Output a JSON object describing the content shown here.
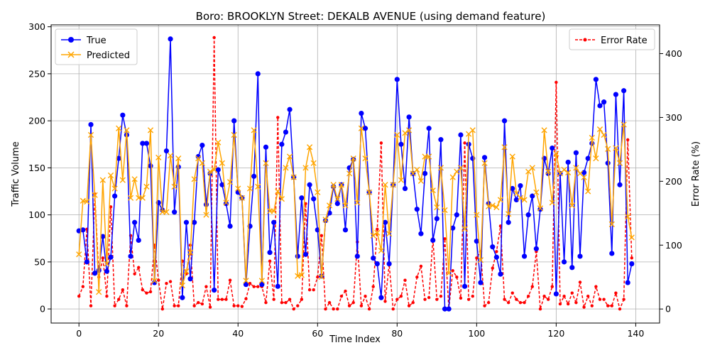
{
  "chart_data": {
    "type": "line",
    "title": "Boro: BROOKLYN Street: DEKALB AVENUE (using demand feature)",
    "xlabel": "Time Index",
    "ylabel": "Traffic Volume",
    "y2label": "Error Rate (%)",
    "xlim": [
      -7,
      146
    ],
    "ylim": [
      -15,
      302
    ],
    "y2lim": [
      -22,
      445
    ],
    "x_ticks": [
      0,
      20,
      40,
      60,
      80,
      100,
      120,
      140
    ],
    "y_ticks": [
      0,
      50,
      100,
      150,
      200,
      250,
      300
    ],
    "y2_ticks": [
      0,
      100,
      200,
      300,
      400
    ],
    "grid": true,
    "legend_left_position": "upper-left",
    "legend_right_position": "upper-right",
    "series": [
      {
        "name": "True",
        "axis": "left",
        "color": "#0000ff",
        "marker": "circle",
        "values": [
          83,
          84,
          50,
          196,
          38,
          41,
          77,
          40,
          55,
          120,
          160,
          206,
          185,
          56,
          92,
          73,
          176,
          176,
          152,
          28,
          113,
          105,
          168,
          287,
          103,
          151,
          12,
          92,
          32,
          92,
          162,
          174,
          111,
          144,
          20,
          148,
          132,
          112,
          88,
          200,
          124,
          118,
          26,
          88,
          141,
          250,
          26,
          172,
          60,
          92,
          24,
          175,
          188,
          212,
          140,
          56,
          118,
          58,
          132,
          117,
          84,
          35,
          94,
          102,
          130,
          112,
          132,
          84,
          150,
          159,
          56,
          208,
          192,
          124,
          54,
          48,
          12,
          92,
          48,
          132,
          244,
          175,
          128,
          204,
          144,
          106,
          80,
          144,
          192,
          73,
          96,
          180,
          0,
          0,
          86,
          100,
          185,
          24,
          175,
          160,
          72,
          28,
          161,
          112,
          66,
          55,
          37,
          200,
          92,
          128,
          116,
          131,
          56,
          100,
          120,
          64,
          106,
          160,
          144,
          171,
          16,
          144,
          50,
          156,
          44,
          166,
          56,
          145,
          160,
          176,
          244,
          216,
          220,
          155,
          59,
          228,
          132,
          232,
          28,
          48
        ]
      },
      {
        "name": "Predicted",
        "axis": "left",
        "color": "#ffa500",
        "marker": "x",
        "values": [
          58,
          115,
          114,
          185,
          121,
          18,
          137,
          48,
          142,
          128,
          192,
          137,
          190,
          118,
          138,
          118,
          118,
          130,
          190,
          30,
          161,
          103,
          103,
          163,
          130,
          160,
          25,
          40,
          60,
          138,
          160,
          155,
          100,
          146,
          148,
          177,
          155,
          113,
          135,
          185,
          128,
          118,
          30,
          128,
          190,
          130,
          30,
          155,
          104,
          104,
          125,
          117,
          150,
          162,
          140,
          35,
          36,
          150,
          172,
          155,
          124,
          34,
          95,
          110,
          132,
          117,
          132,
          110,
          144,
          160,
          113,
          192,
          160,
          124,
          78,
          81,
          62,
          132,
          80,
          132,
          185,
          137,
          187,
          190,
          144,
          148,
          136,
          162,
          162,
          126,
          108,
          150,
          105,
          38,
          140,
          146,
          150,
          85,
          186,
          190,
          100,
          52,
          155,
          109,
          110,
          108,
          116,
          172,
          101,
          162,
          123,
          118,
          116,
          146,
          150,
          124,
          107,
          190,
          146,
          113,
          165,
          144,
          148,
          145,
          110,
          150,
          144,
          140,
          125,
          182,
          160,
          191,
          185,
          170,
          90,
          171,
          155,
          196,
          98,
          76
        ]
      },
      {
        "name": "Error Rate",
        "axis": "right",
        "color": "#ff0000",
        "marker": "dot",
        "style": "dashed",
        "values": [
          20,
          35,
          125,
          5,
          180,
          50,
          80,
          20,
          160,
          5,
          15,
          30,
          5,
          115,
          55,
          65,
          30,
          25,
          27,
          100,
          45,
          0,
          40,
          43,
          5,
          5,
          75,
          55,
          100,
          5,
          10,
          8,
          35,
          3,
          425,
          15,
          15,
          15,
          45,
          5,
          5,
          4,
          16,
          40,
          35,
          35,
          35,
          10,
          75,
          15,
          300,
          10,
          10,
          15,
          0,
          5,
          15,
          165,
          30,
          30,
          50,
          115,
          0,
          10,
          0,
          0,
          20,
          28,
          5,
          10,
          105,
          5,
          20,
          0,
          35,
          125,
          260,
          12,
          70,
          0,
          15,
          20,
          45,
          5,
          10,
          50,
          67,
          15,
          18,
          110,
          15,
          20,
          110,
          0,
          60,
          50,
          17,
          260,
          15,
          20,
          80,
          90,
          5,
          10,
          64,
          90,
          130,
          15,
          10,
          25,
          15,
          10,
          10,
          20,
          35,
          90,
          0,
          20,
          15,
          35,
          355,
          8,
          20,
          8,
          25,
          10,
          42,
          3,
          20,
          5,
          35,
          15,
          15,
          5,
          5,
          25,
          0,
          15,
          265,
          80
        ]
      }
    ]
  }
}
